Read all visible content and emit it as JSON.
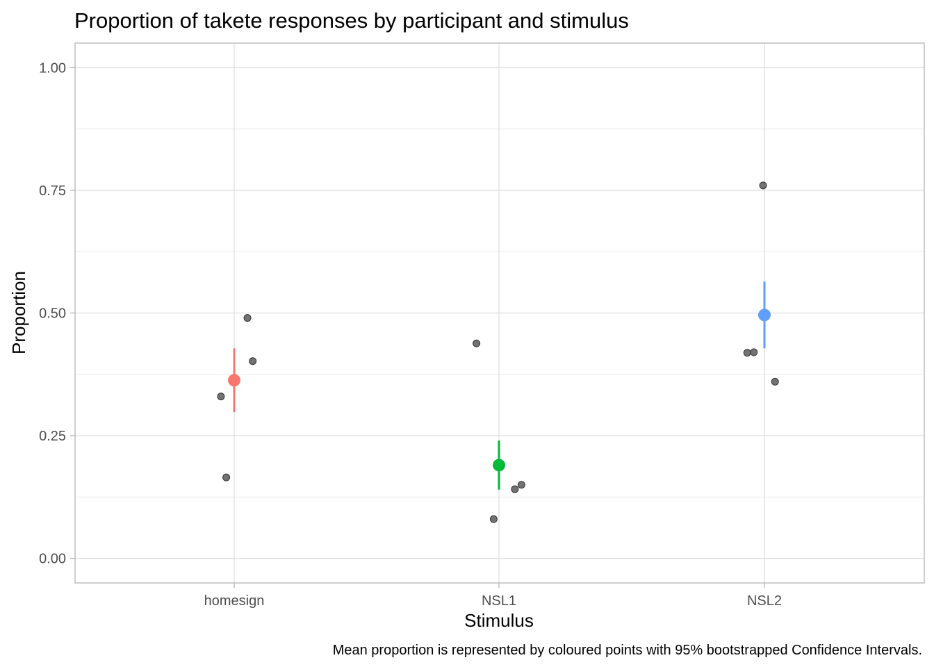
{
  "chart_data": {
    "type": "scatter",
    "title": "Proportion of takete responses by participant and stimulus",
    "xlabel": "Stimulus",
    "ylabel": "Proportion",
    "caption": "Mean proportion is represented by coloured points with 95% bootstrapped Confidence Intervals.",
    "categories": [
      "homesign",
      "NSL1",
      "NSL2"
    ],
    "ylim": [
      -0.05,
      1.05
    ],
    "yticks": [
      0.0,
      0.25,
      0.5,
      0.75,
      1.0
    ],
    "ytick_labels": [
      "0.00",
      "0.25",
      "0.50",
      "0.75",
      "1.00"
    ],
    "grid": true,
    "participant_points": [
      {
        "category": "homesign",
        "jitter": -0.05,
        "y": 0.33
      },
      {
        "category": "homesign",
        "jitter": -0.03,
        "y": 0.165
      },
      {
        "category": "homesign",
        "jitter": 0.05,
        "y": 0.49
      },
      {
        "category": "homesign",
        "jitter": 0.07,
        "y": 0.402
      },
      {
        "category": "NSL1",
        "jitter": -0.085,
        "y": 0.438
      },
      {
        "category": "NSL1",
        "jitter": -0.02,
        "y": 0.08
      },
      {
        "category": "NSL1",
        "jitter": 0.06,
        "y": 0.141
      },
      {
        "category": "NSL1",
        "jitter": 0.085,
        "y": 0.15
      },
      {
        "category": "NSL2",
        "jitter": -0.065,
        "y": 0.419
      },
      {
        "category": "NSL2",
        "jitter": -0.04,
        "y": 0.42
      },
      {
        "category": "NSL2",
        "jitter": -0.005,
        "y": 0.76
      },
      {
        "category": "NSL2",
        "jitter": 0.04,
        "y": 0.36
      }
    ],
    "means": [
      {
        "category": "homesign",
        "mean": 0.363,
        "ci_low": 0.298,
        "ci_high": 0.428,
        "color": "#F8766D"
      },
      {
        "category": "NSL1",
        "mean": 0.19,
        "ci_low": 0.14,
        "ci_high": 0.24,
        "color": "#00BA38"
      },
      {
        "category": "NSL2",
        "mean": 0.496,
        "ci_low": 0.428,
        "ci_high": 0.564,
        "color": "#619CFF"
      }
    ],
    "participant_point_color": "#595959"
  }
}
